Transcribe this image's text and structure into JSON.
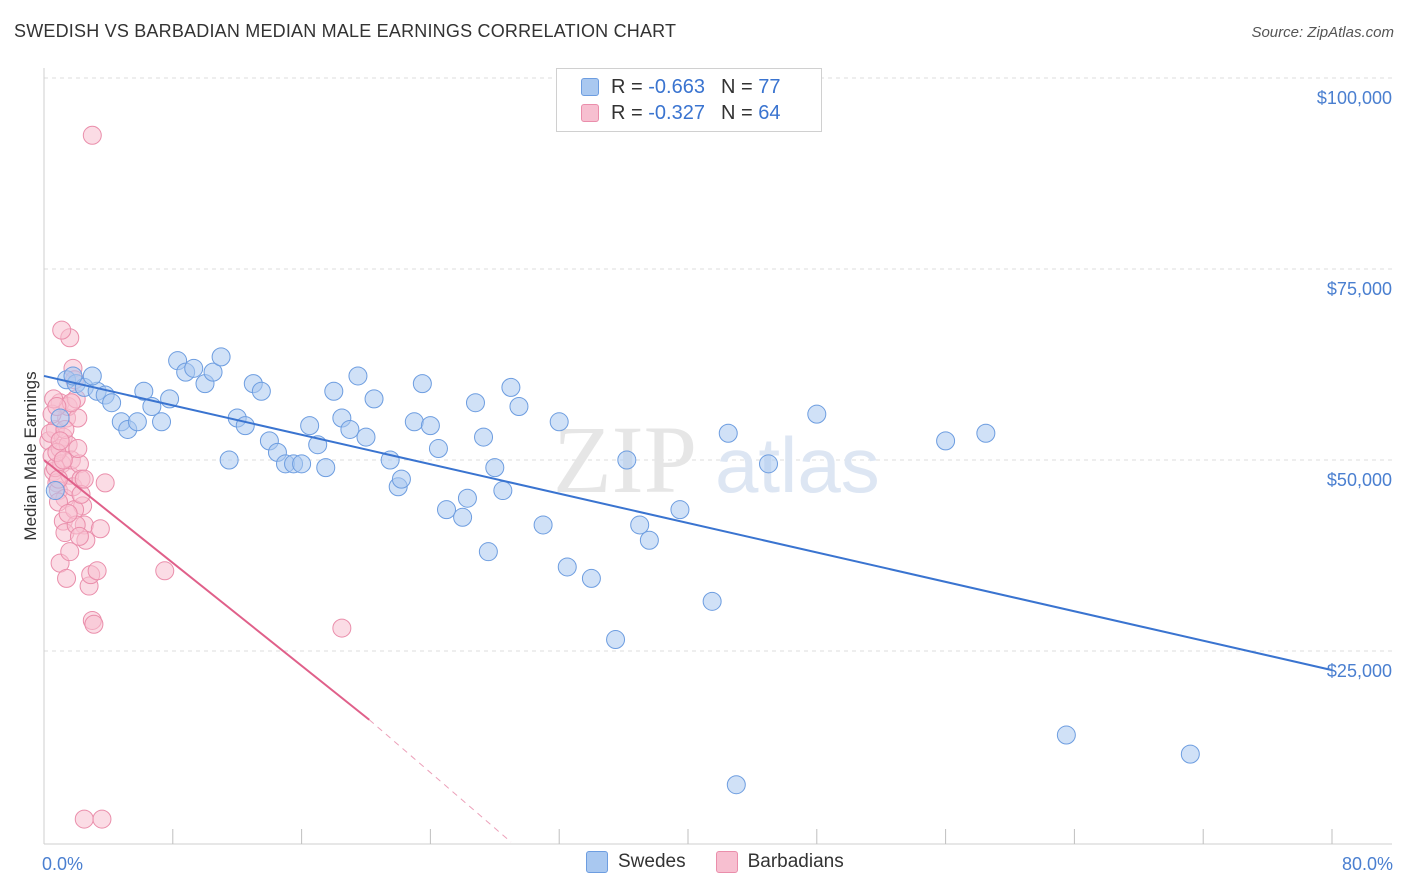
{
  "title": "SWEDISH VS BARBADIAN MEDIAN MALE EARNINGS CORRELATION CHART",
  "source": "Source: ZipAtlas.com",
  "watermark": {
    "zip": "ZIP",
    "atlas": "atlas"
  },
  "legend": {
    "rows": [
      {
        "r_label": "R = ",
        "r_value": "-0.663",
        "n_label": "N = ",
        "n_value": "77",
        "color": "#a9c8f0",
        "border": "#6d9de0"
      },
      {
        "r_label": "R = ",
        "r_value": "-0.327",
        "n_label": "N = ",
        "n_value": "64",
        "color": "#f7bfd0",
        "border": "#ea8eab"
      }
    ]
  },
  "bottom_legend": [
    {
      "label": "Swedes",
      "color": "#a9c8f0",
      "border": "#6d9de0"
    },
    {
      "label": "Barbadians",
      "color": "#f7bfd0",
      "border": "#ea8eab"
    }
  ],
  "chart_data": {
    "type": "scatter",
    "title": "SWEDISH VS BARBADIAN MEDIAN MALE EARNINGS CORRELATION CHART",
    "xlabel": "",
    "ylabel": "Median Male Earnings",
    "xlim": [
      0,
      80
    ],
    "ylim": [
      0,
      105000
    ],
    "x_tick_labels": [
      "0.0%",
      "80.0%"
    ],
    "y_ticks": [
      {
        "value": 100000,
        "label": "$100,000"
      },
      {
        "value": 75000,
        "label": "$75,000"
      },
      {
        "value": 50000,
        "label": "$50,000"
      },
      {
        "value": 25000,
        "label": "$25,000"
      }
    ],
    "series": [
      {
        "name": "Swedes",
        "color": "#6d9de0",
        "fill": "#a9c8f0",
        "line_color": "#3a74d0",
        "trend": {
          "x0": 0.0,
          "y0": 61000,
          "x1": 80.0,
          "y1": 22500
        },
        "points": [
          [
            0.7,
            46000
          ],
          [
            1.0,
            55500
          ],
          [
            1.4,
            60500
          ],
          [
            2.0,
            60000
          ],
          [
            2.5,
            59500
          ],
          [
            3.3,
            59000
          ],
          [
            3.8,
            58500
          ],
          [
            3.0,
            61000
          ],
          [
            4.2,
            57500
          ],
          [
            4.8,
            55000
          ],
          [
            5.2,
            54000
          ],
          [
            5.8,
            55000
          ],
          [
            6.2,
            59000
          ],
          [
            6.7,
            57000
          ],
          [
            7.3,
            55000
          ],
          [
            7.8,
            58000
          ],
          [
            8.3,
            63000
          ],
          [
            8.8,
            61500
          ],
          [
            9.3,
            62000
          ],
          [
            10.0,
            60000
          ],
          [
            10.5,
            61500
          ],
          [
            11.0,
            63500
          ],
          [
            11.5,
            50000
          ],
          [
            12.0,
            55500
          ],
          [
            12.5,
            54500
          ],
          [
            13.0,
            60000
          ],
          [
            13.5,
            59000
          ],
          [
            14.0,
            52500
          ],
          [
            14.5,
            51000
          ],
          [
            15.0,
            49500
          ],
          [
            15.5,
            49500
          ],
          [
            16.0,
            49500
          ],
          [
            16.5,
            54500
          ],
          [
            17.0,
            52000
          ],
          [
            17.5,
            49000
          ],
          [
            18.0,
            59000
          ],
          [
            18.5,
            55500
          ],
          [
            19.0,
            54000
          ],
          [
            19.5,
            61000
          ],
          [
            20.0,
            53000
          ],
          [
            20.5,
            58000
          ],
          [
            21.5,
            50000
          ],
          [
            22.0,
            46500
          ],
          [
            22.2,
            47500
          ],
          [
            23.0,
            55000
          ],
          [
            23.5,
            60000
          ],
          [
            24.0,
            54500
          ],
          [
            24.5,
            51500
          ],
          [
            25.0,
            43500
          ],
          [
            26.0,
            42500
          ],
          [
            26.3,
            45000
          ],
          [
            26.8,
            57500
          ],
          [
            27.3,
            53000
          ],
          [
            27.6,
            38000
          ],
          [
            28.0,
            49000
          ],
          [
            28.5,
            46000
          ],
          [
            29.0,
            59500
          ],
          [
            29.5,
            57000
          ],
          [
            31.0,
            41500
          ],
          [
            32.0,
            55000
          ],
          [
            32.5,
            36000
          ],
          [
            34.0,
            34500
          ],
          [
            35.5,
            26500
          ],
          [
            36.2,
            50000
          ],
          [
            37.0,
            41500
          ],
          [
            37.6,
            39500
          ],
          [
            39.5,
            43500
          ],
          [
            41.5,
            31500
          ],
          [
            42.5,
            53500
          ],
          [
            43.0,
            7500
          ],
          [
            45.0,
            49500
          ],
          [
            48.0,
            56000
          ],
          [
            56.0,
            52500
          ],
          [
            58.5,
            53500
          ],
          [
            63.5,
            14000
          ],
          [
            71.2,
            11500
          ],
          [
            1.8,
            61000
          ]
        ]
      },
      {
        "name": "Barbadians",
        "color": "#ea8eab",
        "fill": "#f7bfd0",
        "line_color": "#e0608a",
        "trend": {
          "x0": 0.0,
          "y0": 50000,
          "x1": 20.2,
          "y1": 16000
        },
        "trend_dashed": {
          "x0": 20.2,
          "y0": 16000,
          "x1": 29.0,
          "y1": 0
        },
        "points": [
          [
            0.3,
            52500
          ],
          [
            0.5,
            50500
          ],
          [
            0.6,
            48500
          ],
          [
            0.7,
            54000
          ],
          [
            0.8,
            47000
          ],
          [
            0.9,
            46000
          ],
          [
            1.0,
            57500
          ],
          [
            1.0,
            51500
          ],
          [
            1.1,
            49500
          ],
          [
            1.2,
            53000
          ],
          [
            1.3,
            45000
          ],
          [
            1.4,
            55500
          ],
          [
            1.5,
            52000
          ],
          [
            1.6,
            48000
          ],
          [
            1.7,
            50000
          ],
          [
            1.8,
            46500
          ],
          [
            0.9,
            44500
          ],
          [
            1.2,
            42000
          ],
          [
            1.3,
            40500
          ],
          [
            1.0,
            36500
          ],
          [
            1.4,
            34500
          ],
          [
            1.5,
            57000
          ],
          [
            1.6,
            66000
          ],
          [
            1.1,
            67000
          ],
          [
            1.8,
            62000
          ],
          [
            1.9,
            60500
          ],
          [
            2.0,
            58000
          ],
          [
            2.1,
            55500
          ],
          [
            2.2,
            49500
          ],
          [
            2.3,
            47500
          ],
          [
            2.4,
            44000
          ],
          [
            2.5,
            41500
          ],
          [
            2.6,
            39500
          ],
          [
            2.8,
            33500
          ],
          [
            2.9,
            35000
          ],
          [
            3.0,
            29000
          ],
          [
            3.1,
            28500
          ],
          [
            3.3,
            35500
          ],
          [
            3.5,
            41000
          ],
          [
            3.8,
            47000
          ],
          [
            0.5,
            56000
          ],
          [
            0.6,
            58000
          ],
          [
            0.7,
            49000
          ],
          [
            0.8,
            51000
          ],
          [
            1.9,
            43500
          ],
          [
            2.0,
            41500
          ],
          [
            2.3,
            45500
          ],
          [
            2.5,
            47500
          ],
          [
            3.0,
            92500
          ],
          [
            7.5,
            35500
          ],
          [
            18.5,
            28000
          ],
          [
            2.5,
            3000
          ],
          [
            3.6,
            3000
          ],
          [
            1.2,
            50000
          ],
          [
            0.4,
            53500
          ],
          [
            0.9,
            47500
          ],
          [
            1.5,
            43000
          ],
          [
            1.7,
            57500
          ],
          [
            2.1,
            51500
          ],
          [
            1.3,
            54000
          ],
          [
            0.8,
            57000
          ],
          [
            1.6,
            38000
          ],
          [
            2.2,
            40000
          ],
          [
            1.0,
            52500
          ]
        ]
      }
    ]
  }
}
